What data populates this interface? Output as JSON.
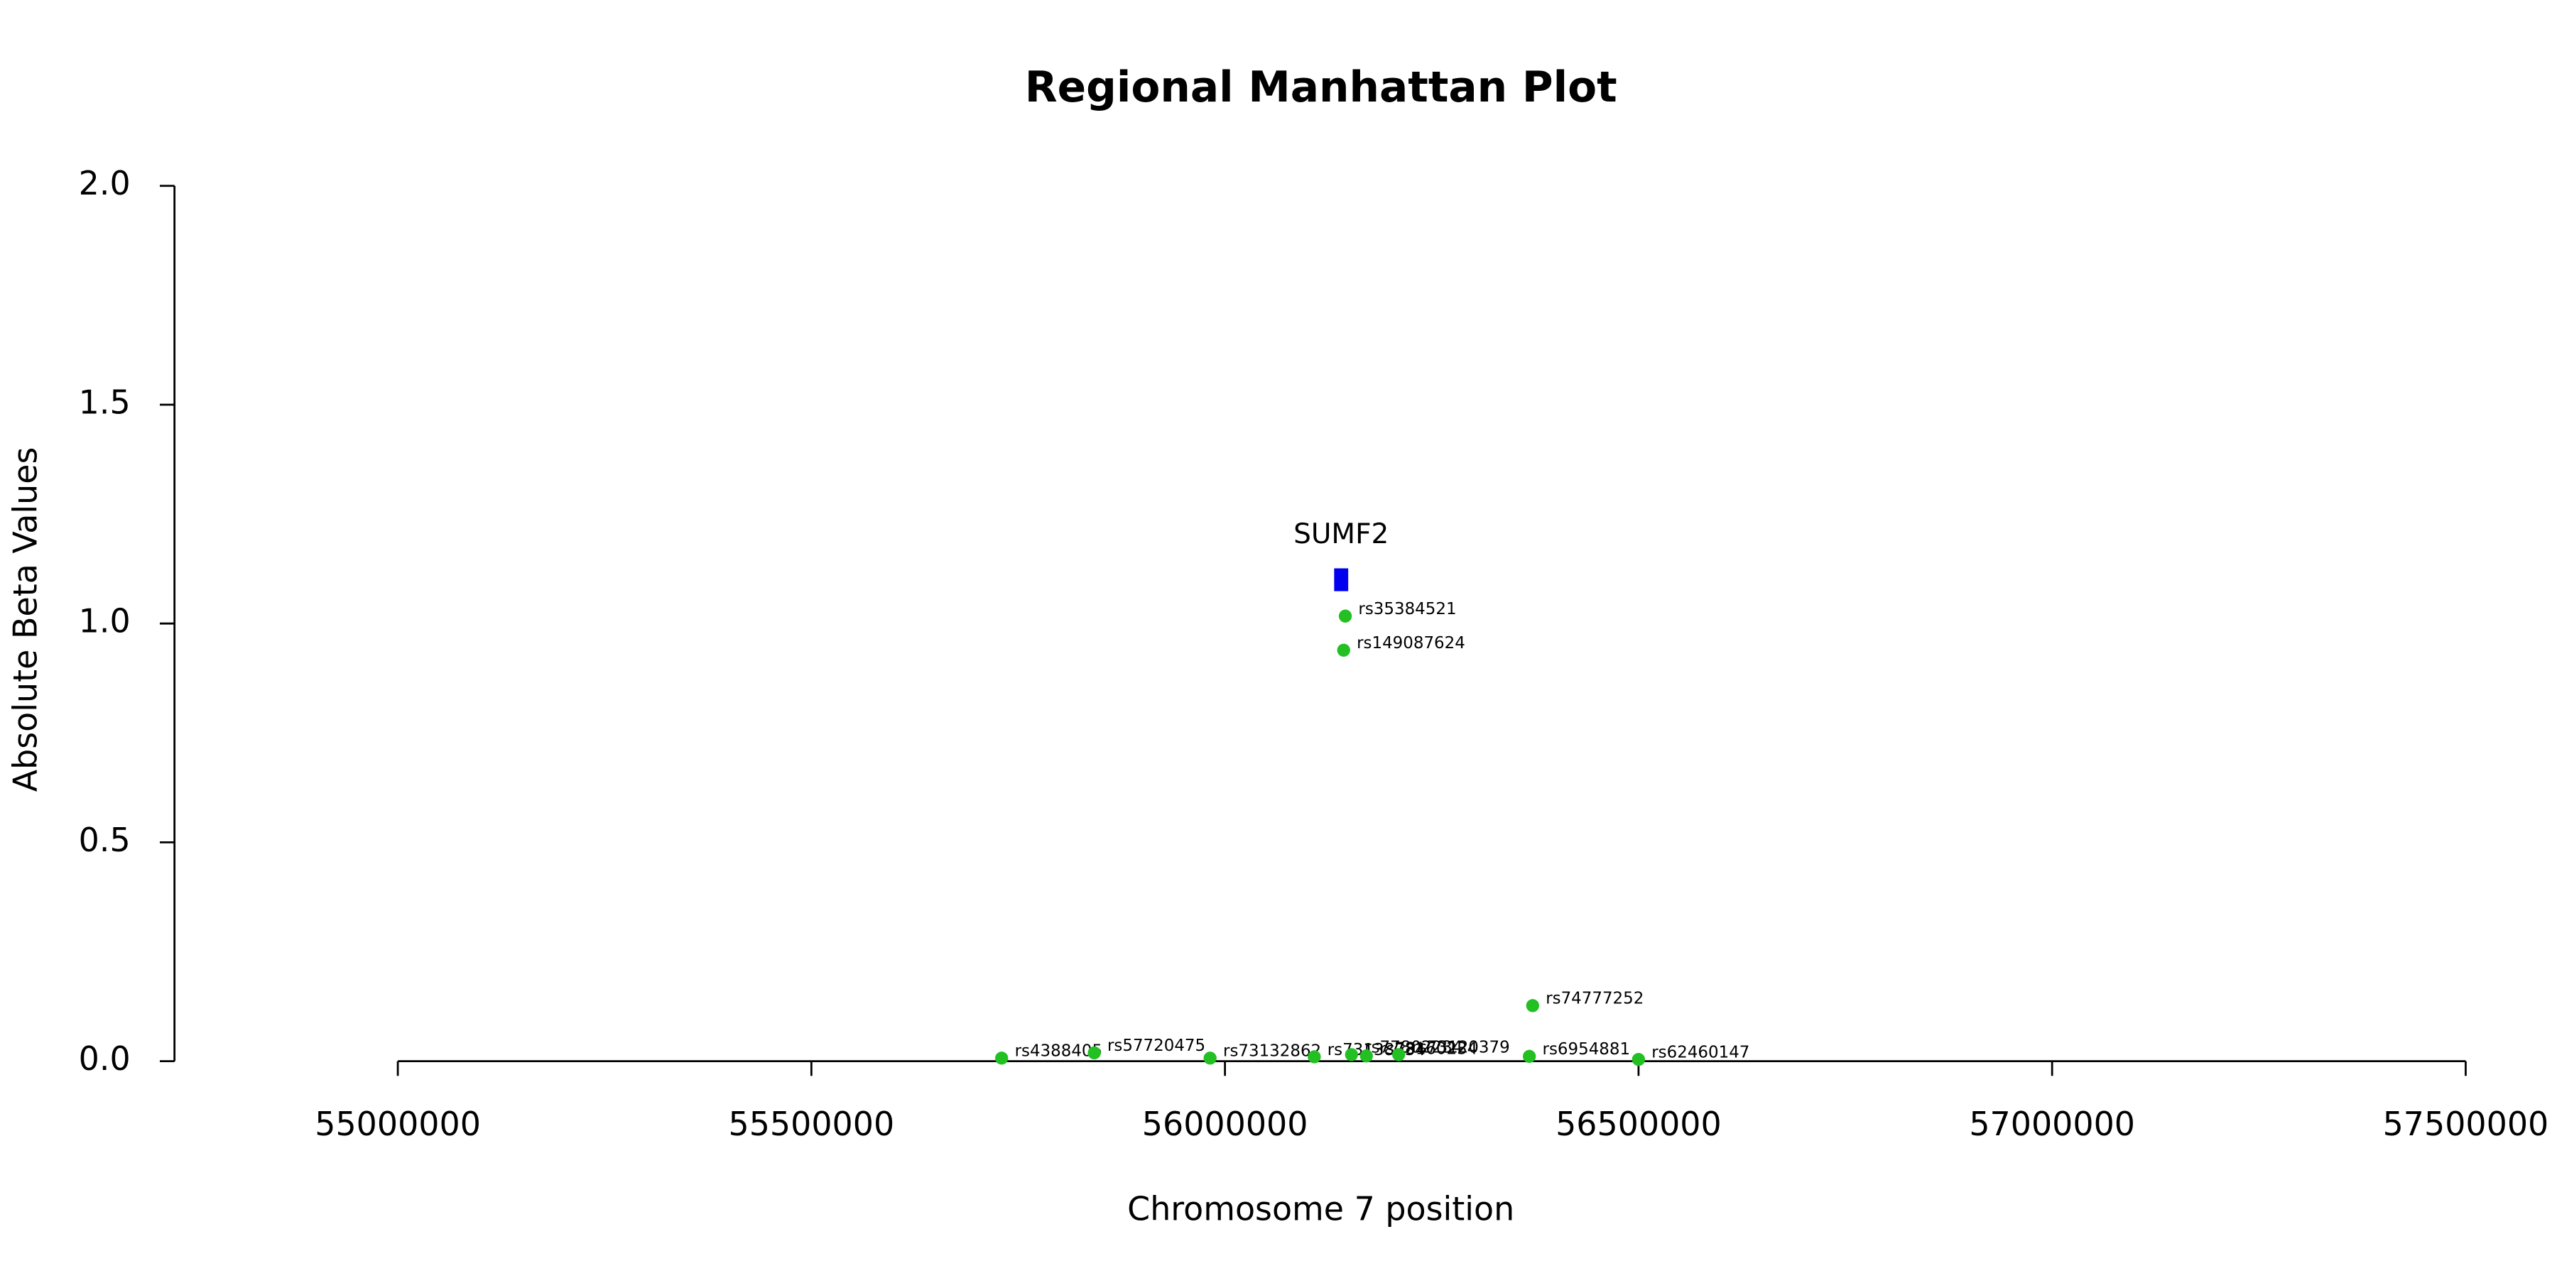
{
  "chart_data": {
    "type": "scatter",
    "title": "Regional Manhattan Plot",
    "x_label": "Chromosome 7 position",
    "y_label": "Absolute Beta Values",
    "xlim": [
      54730000,
      57500000
    ],
    "ylim": [
      0,
      2
    ],
    "xticks": [
      55000000,
      55500000,
      56000000,
      56500000,
      57000000,
      57500000
    ],
    "yticks": [
      {
        "value": 0,
        "label": "0.0"
      },
      0.5,
      {
        "value": 1,
        "label": "1.0"
      },
      1.5,
      {
        "value": 2,
        "label": "2.0"
      }
    ],
    "color": "#22c022",
    "x": [
      55730000,
      55842000,
      55982000,
      56108000,
      56153000,
      56171000,
      56210000,
      56372000,
      56368000,
      56500000,
      56145500,
      56143500
    ],
    "values": [
      0.007,
      0.019,
      0.007,
      0.01,
      0.015,
      0.012,
      0.015,
      0.127,
      0.011,
      0.004,
      1.017,
      0.939
    ],
    "point_labels": [
      "rs4388405",
      "rs57720475",
      "rs73132862",
      "rs73138734",
      "rs77802234",
      "rs78160234",
      "rs73120379",
      "rs74777252",
      "rs6954881",
      "rs62460147",
      "rs35384521",
      "rs149087624"
    ],
    "gene": {
      "name": "SUMF2",
      "start": 56132000,
      "end": 56149000,
      "y": 1.1,
      "color": "#0000ee"
    }
  }
}
